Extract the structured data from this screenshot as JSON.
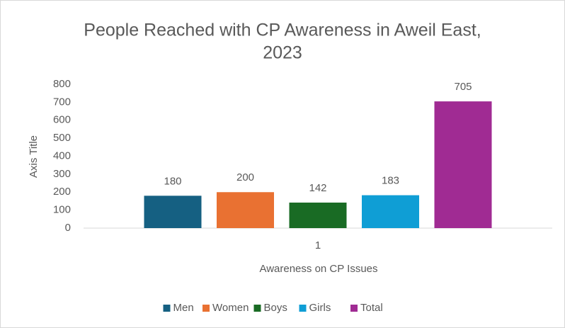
{
  "chart_data": {
    "type": "bar",
    "title_lines": [
      "People Reached with CP Awareness in Aweil East,",
      "2023"
    ],
    "y_axis_title": "Axis Title",
    "x_axis_title": "Awareness on CP Issues",
    "categories": [
      "1"
    ],
    "series": [
      {
        "name": "Men",
        "color": "#156082",
        "values": [
          180
        ]
      },
      {
        "name": "Women",
        "color": "#E97132",
        "values": [
          200
        ]
      },
      {
        "name": "Boys",
        "color": "#196B24",
        "values": [
          142
        ]
      },
      {
        "name": "Girls",
        "color": "#0F9ED5",
        "values": [
          183
        ]
      },
      {
        "name": "Total",
        "color": "#A02B93",
        "values": [
          705
        ]
      }
    ],
    "ylim": [
      0,
      800
    ],
    "yticks": [
      0,
      100,
      200,
      300,
      400,
      500,
      600,
      700,
      800
    ],
    "grid": false,
    "legend": "bottom"
  }
}
